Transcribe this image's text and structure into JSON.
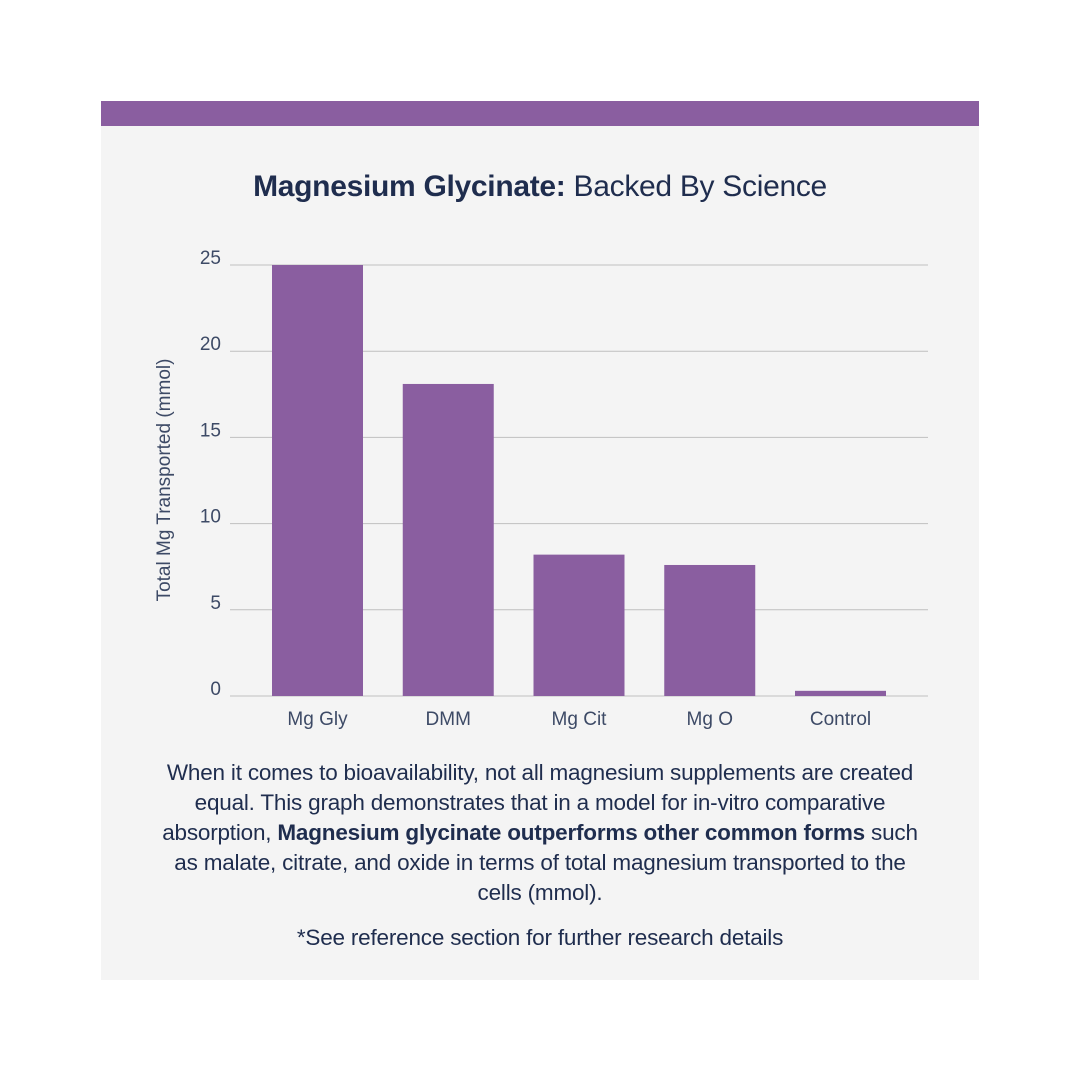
{
  "colors": {
    "accent": "#8a5ea0",
    "text": "#1f2d4e",
    "axis_text": "#3d4a66",
    "grid": "#bfbfbf",
    "card_bg": "#f4f4f4"
  },
  "title": {
    "bold": "Magnesium Glycinate:",
    "rest": "Backed By Science"
  },
  "chart_data": {
    "type": "bar",
    "categories": [
      "Mg Gly",
      "DMM",
      "Mg Cit",
      "Mg O",
      "Control"
    ],
    "values": [
      25.0,
      18.1,
      8.2,
      7.6,
      0.3
    ],
    "ylabel": "Total Mg Transported (mmol)",
    "xlabel": "",
    "ylim": [
      0,
      25
    ],
    "yticks": [
      0,
      5,
      10,
      15,
      20,
      25
    ],
    "grid": true,
    "bar_color": "#8a5ea0"
  },
  "description": {
    "part1": "When it comes to bioavailability, not all magnesium supplements are created equal. This graph demonstrates that in a model for in-vitro comparative absorption,",
    "bold": "Magnesium glycinate outperforms other common forms",
    "part2": "such as malate, citrate, and oxide in terms of total magnesium transported to the cells (mmol)."
  },
  "footnote": "*See reference section for further research details"
}
